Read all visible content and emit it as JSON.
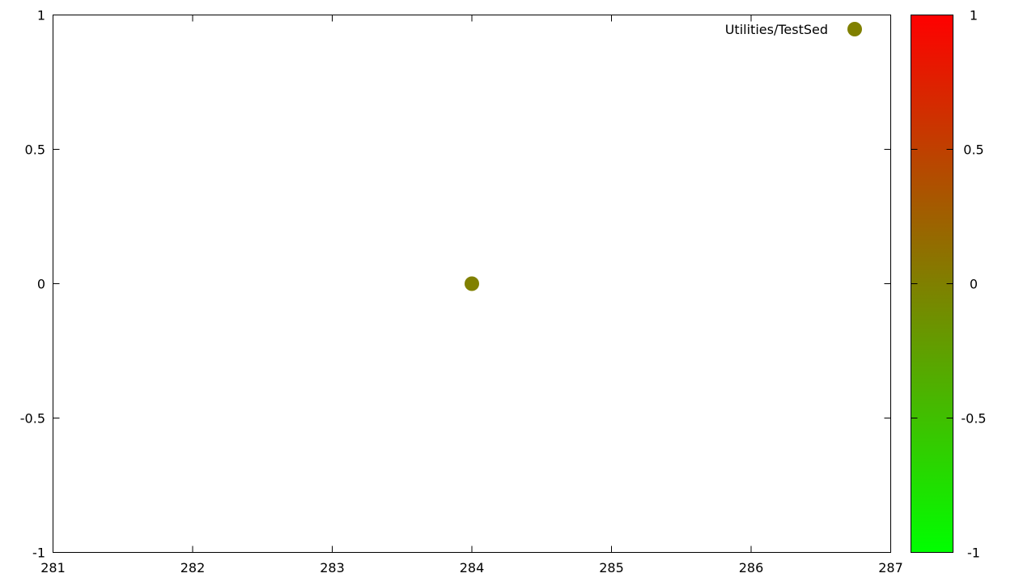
{
  "chart_data": {
    "type": "scatter",
    "title": "",
    "xlabel": "",
    "ylabel": "",
    "xlim": [
      281,
      287
    ],
    "ylim": [
      -1,
      1
    ],
    "x_ticks": [
      281,
      282,
      283,
      284,
      285,
      286,
      287
    ],
    "x_tick_labels": [
      "281",
      "282",
      "283",
      "284",
      "285",
      "286",
      "287"
    ],
    "y_ticks": [
      -1,
      -0.5,
      0,
      0.5,
      1
    ],
    "y_tick_labels": [
      "-1",
      "-0.5",
      "0",
      "0.5",
      "1"
    ],
    "grid": false,
    "legend_position": "top-right",
    "series": [
      {
        "name": "Utilities/TestSed",
        "points": [
          {
            "x": 284,
            "y": 0,
            "c": 0
          }
        ]
      }
    ],
    "colorbar": {
      "range": [
        -1,
        1
      ],
      "ticks": [
        -1,
        -0.5,
        0,
        0.5,
        1
      ],
      "tick_labels": [
        "-1",
        "-0.5",
        "0",
        "0.5",
        "1"
      ],
      "colors": {
        "low": "#00ff00",
        "high": "#ff0000"
      },
      "position": "right"
    }
  }
}
